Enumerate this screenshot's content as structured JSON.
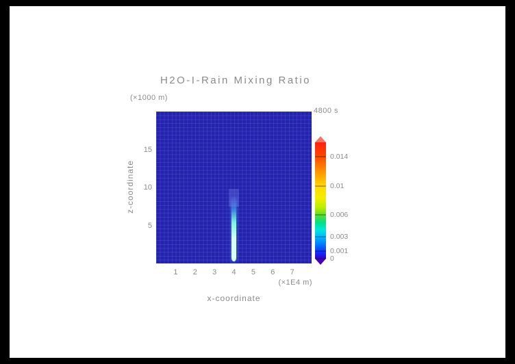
{
  "chart": {
    "title": "H2O-I-Rain Mixing Ratio",
    "time_label": "4800 s",
    "xlabel": "x-coordinate",
    "ylabel": "z-coordinate",
    "x_unit_label": "(×1E4 m)",
    "y_unit_label": "(×1000 m)"
  },
  "chart_data": {
    "type": "heatmap",
    "title": "H2O-I-Rain Mixing Ratio",
    "annotation_time": "4800 s",
    "xlabel": "x-coordinate",
    "ylabel": "z-coordinate",
    "x_unit": "×1E4 m",
    "y_unit": "×1000 m",
    "xlim": [
      0,
      8
    ],
    "ylim": [
      0,
      20
    ],
    "x_ticks": [
      1,
      2,
      3,
      4,
      5,
      6,
      7
    ],
    "y_ticks": [
      5,
      10,
      15
    ],
    "grid": true,
    "legend_position": "right",
    "field": {
      "background_value": 0,
      "feature": {
        "description": "Narrow vertical rain shaft of elevated mixing ratio near x = 4",
        "x_center": 4.0,
        "x_width": 0.25,
        "z_bottom": 0.3,
        "z_top": 8.6,
        "peak_value": 0.004
      }
    },
    "colorbar": {
      "levels": [
        0,
        0.001,
        0.003,
        0.006,
        0.01,
        0.014
      ],
      "max": 0.016,
      "over_color": "#ee7766",
      "under_color": "#4400bb",
      "gradient": [
        {
          "pos": 0,
          "color": "#3300cc"
        },
        {
          "pos": 6,
          "color": "#1133ff"
        },
        {
          "pos": 12,
          "color": "#0077ff"
        },
        {
          "pos": 19,
          "color": "#00bbff"
        },
        {
          "pos": 25,
          "color": "#00e8d8"
        },
        {
          "pos": 31,
          "color": "#00e088"
        },
        {
          "pos": 37,
          "color": "#55dd33"
        },
        {
          "pos": 44,
          "color": "#bbee00"
        },
        {
          "pos": 52,
          "color": "#f2ee00"
        },
        {
          "pos": 62,
          "color": "#ffd900"
        },
        {
          "pos": 71,
          "color": "#ffaa00"
        },
        {
          "pos": 80,
          "color": "#ff7700"
        },
        {
          "pos": 89,
          "color": "#ff4400"
        },
        {
          "pos": 100,
          "color": "#ff2211"
        }
      ]
    },
    "colors": {
      "field_background": "#2323ae",
      "grid_line": "rgba(150,160,255,0.16)",
      "streak_core": "#d8fff4",
      "streak_mid": "#7df2e4",
      "streak_top": "rgba(80,140,255,0.30)"
    }
  }
}
